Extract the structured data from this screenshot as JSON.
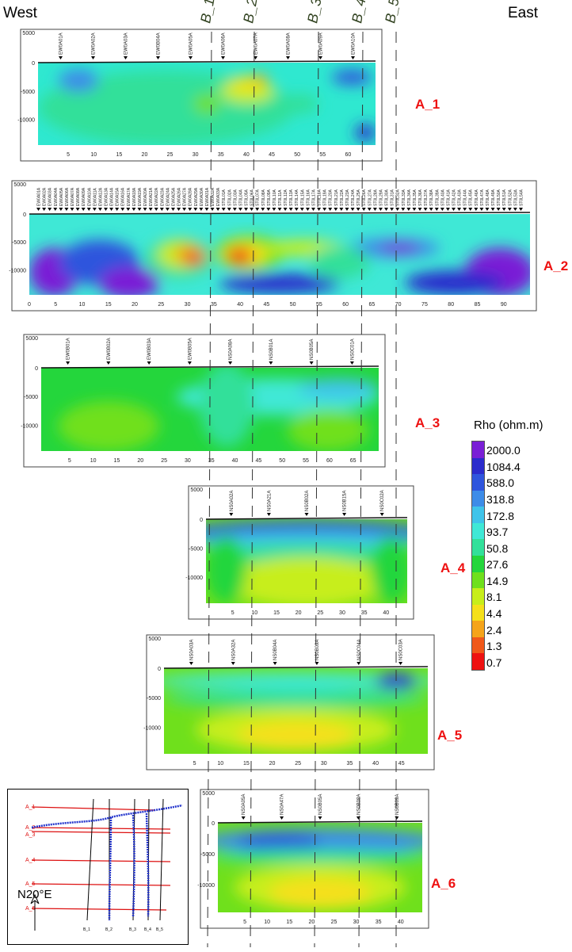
{
  "header": {
    "west": "West",
    "east": "East"
  },
  "chart_data": {
    "type": "heatmap",
    "colorbar": {
      "title": "Rho (ohm.m)",
      "ticks": [
        "2000.0",
        "1084.4",
        "588.0",
        "318.8",
        "172.8",
        "93.7",
        "50.8",
        "27.6",
        "14.9",
        "8.1",
        "4.4",
        "2.4",
        "1.3",
        "0.7"
      ],
      "colors": [
        "#7a1fd6",
        "#2b2bcc",
        "#2f55dd",
        "#3d8ce8",
        "#3fc4ea",
        "#3fe8d6",
        "#32e09a",
        "#24d63c",
        "#6fe01c",
        "#c7ee1a",
        "#f5e01a",
        "#f5a41a",
        "#f0581a",
        "#ee1111"
      ]
    },
    "cross_lines": [
      "B_1",
      "B_2",
      "B_3",
      "B_4",
      "B_5"
    ],
    "sections": [
      {
        "name": "A_1",
        "yticks": [
          "5000",
          "0",
          "-5000",
          "-10000"
        ],
        "xticks": [
          "5",
          "10",
          "15",
          "20",
          "25",
          "30",
          "35",
          "40",
          "45",
          "50",
          "55",
          "60"
        ],
        "stations": [
          "EW0A01A",
          "EW0A02A",
          "EW0A03A",
          "EW0B04A",
          "EW0A05A",
          "EW0A06A",
          "EW0A07A",
          "EW0A08A",
          "EW0A09A",
          "EW0A10A"
        ]
      },
      {
        "name": "A_2",
        "yticks": [
          "5000",
          "0",
          "-5000",
          "-10000"
        ],
        "xticks": [
          "0",
          "5",
          "10",
          "15",
          "20",
          "25",
          "30",
          "35",
          "40",
          "45",
          "50",
          "55",
          "60",
          "65",
          "70",
          "75",
          "80",
          "85",
          "90"
        ],
        "stations": [
          "EW0A01A",
          "EW0A02A",
          "EW0A03A",
          "EW0A04A",
          "EW0A05A",
          "EW0A06A",
          "EW0A07A",
          "EW0A08A",
          "EW0A09A",
          "EW0A10A",
          "EW0A11A",
          "EW0A12A",
          "EW0A13A",
          "EW0A14A",
          "EW0A15A",
          "EW0A16A",
          "EW0A17A",
          "EW0A18A",
          "EW0A19A",
          "EW0A20A",
          "EW0A21A",
          "EW0A22A",
          "EW0A23A",
          "EW0A24A",
          "EW0A25A",
          "EW0A26A",
          "EW0A27A",
          "EW0A28A",
          "EW0A29A",
          "EW0A30A",
          "EW0A31A",
          "EW0A32A",
          "EW0A33A",
          "ST0L01A",
          "ST0L02A",
          "ST0L03A",
          "ST0L04A",
          "ST0L05A",
          "ST0L06A",
          "ST0L07A",
          "ST0L08A",
          "ST0L09A",
          "ST0L10A",
          "ST0L11A",
          "ST0L12A",
          "ST0L13A",
          "ST0L14A",
          "ST0L15A",
          "ST0L16A",
          "ST0L17A",
          "ST0L18A",
          "ST0L19A",
          "ST0L20A",
          "ST0L21A",
          "ST0L22A",
          "ST0L23A",
          "ST0L24A",
          "ST0L25A",
          "ST0L26A",
          "ST0L27A",
          "ST0L28A",
          "ST0L29A",
          "ST0L30A",
          "ST0L31A",
          "ST0L32A",
          "ST0L33A",
          "ST0L34A",
          "ST0L35A",
          "ST0L36A",
          "ST0L37A",
          "ST0L38A",
          "ST0L39A",
          "ST0L40A",
          "ST0L41A",
          "ST0L42A",
          "ST0L43A",
          "ST0L44A",
          "ST0L45A",
          "ST0L46A",
          "ST0L47A",
          "ST0L48A",
          "ST0L49A",
          "ST0L50A",
          "ST0L51A",
          "ST0L52A",
          "ST0L53A",
          "ST0L54A"
        ]
      },
      {
        "name": "A_3",
        "yticks": [
          "5000",
          "0",
          "-5000",
          "-10000"
        ],
        "xticks": [
          "5",
          "10",
          "15",
          "20",
          "25",
          "30",
          "35",
          "40",
          "45",
          "50",
          "55",
          "60",
          "65"
        ],
        "stations": [
          "EW0B01A",
          "EW0B02A",
          "EW0B03A",
          "EW0B05A",
          "NS0A08A",
          "NS0B01A",
          "NS0B05A",
          "NS0C01A"
        ]
      },
      {
        "name": "A_4",
        "yticks": [
          "5000",
          "0",
          "-5000",
          "-10000"
        ],
        "xticks": [
          "5",
          "10",
          "15",
          "20",
          "25",
          "30",
          "35",
          "40"
        ],
        "stations": [
          "NS0A02A",
          "NS0A21A",
          "NS0B02A",
          "NS0B15A",
          "NS0C02A"
        ]
      },
      {
        "name": "A_5",
        "yticks": [
          "5000",
          "0",
          "-5000",
          "-10000"
        ],
        "xticks": [
          "5",
          "10",
          "15",
          "20",
          "25",
          "30",
          "35",
          "40",
          "45"
        ],
        "stations": [
          "NS0A03A",
          "NS0A32A",
          "NS0B04A",
          "NS0B09A",
          "NS0C04A",
          "NS0C03A"
        ]
      },
      {
        "name": "A_6",
        "yticks": [
          "5000",
          "0",
          "-5000",
          "-10000"
        ],
        "xticks": [
          "5",
          "10",
          "15",
          "20",
          "25",
          "30",
          "35",
          "40"
        ],
        "stations": [
          "NS0A05A",
          "NS0A47A",
          "NS0B05A",
          "NS0B08A",
          "NS0B09A"
        ]
      }
    ],
    "inset": {
      "lines_a": [
        "A_1",
        "A_2",
        "A_3",
        "A_4",
        "A_5",
        "A_6"
      ],
      "lines_b": [
        "B_1",
        "B_2",
        "B_3",
        "B_4",
        "B_5"
      ],
      "north": "N20°E"
    }
  }
}
